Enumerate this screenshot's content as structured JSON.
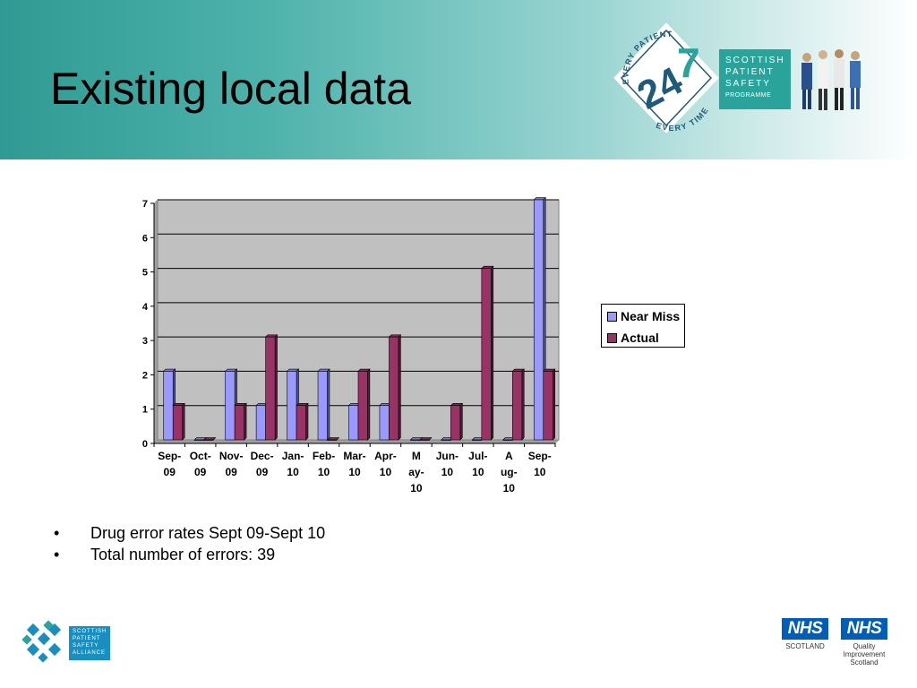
{
  "slide": {
    "title": "Existing local data",
    "bullets": [
      "Drug error rates Sept 09-Sept 10",
      "Total number of errors: 39"
    ],
    "bullet_char": "•"
  },
  "logos": {
    "programme": {
      "ring_top": "EVERY PATIENT",
      "ring_bottom": "EVERY TIME",
      "number_a": "24",
      "number_b": "7",
      "lines": [
        "SCOTTISH",
        "PATIENT",
        "SAFETY",
        "PROGRAMME"
      ]
    },
    "alliance": {
      "lines": [
        "SCOTTISH",
        "PATIENT",
        "SAFETY",
        "ALLIANCE"
      ]
    },
    "nhs_scotland": {
      "mark": "NHS",
      "caption": "SCOTLAND"
    },
    "nhs_qis": {
      "mark": "NHS",
      "caption_lines": [
        "Quality",
        "Improvement",
        "Scotland"
      ]
    }
  },
  "colors": {
    "near_miss": "#9999ff",
    "actual": "#993366",
    "plot_bg": "#c0c0c0",
    "header_teal": "#2f9a93"
  },
  "chart_data": {
    "type": "bar",
    "categories": [
      [
        "Sep-",
        "09"
      ],
      [
        "Oct-",
        "09"
      ],
      [
        "Nov-",
        "09"
      ],
      [
        "Dec-",
        "09"
      ],
      [
        "Jan-",
        "10"
      ],
      [
        "Feb-",
        "10"
      ],
      [
        "Mar-",
        "10"
      ],
      [
        "Apr-",
        "10"
      ],
      [
        "M",
        "ay-",
        "10"
      ],
      [
        "Jun-",
        "10"
      ],
      [
        "Jul-",
        "10"
      ],
      [
        "A",
        "ug-",
        "10"
      ],
      [
        "Sep-",
        "10"
      ]
    ],
    "series": [
      {
        "name": "Near Miss",
        "values": [
          2,
          0,
          2,
          1,
          2,
          2,
          1,
          1,
          0,
          0,
          0,
          0,
          7
        ]
      },
      {
        "name": "Actual",
        "values": [
          1,
          0,
          1,
          3,
          1,
          0,
          2,
          3,
          0,
          1,
          5,
          2,
          2
        ]
      }
    ],
    "yticks": [
      "0",
      "1",
      "2",
      "3",
      "4",
      "5",
      "6",
      "7"
    ],
    "ylim": [
      0,
      7
    ],
    "grid": true,
    "legend_position": "right",
    "title": "",
    "xlabel": "",
    "ylabel": ""
  }
}
